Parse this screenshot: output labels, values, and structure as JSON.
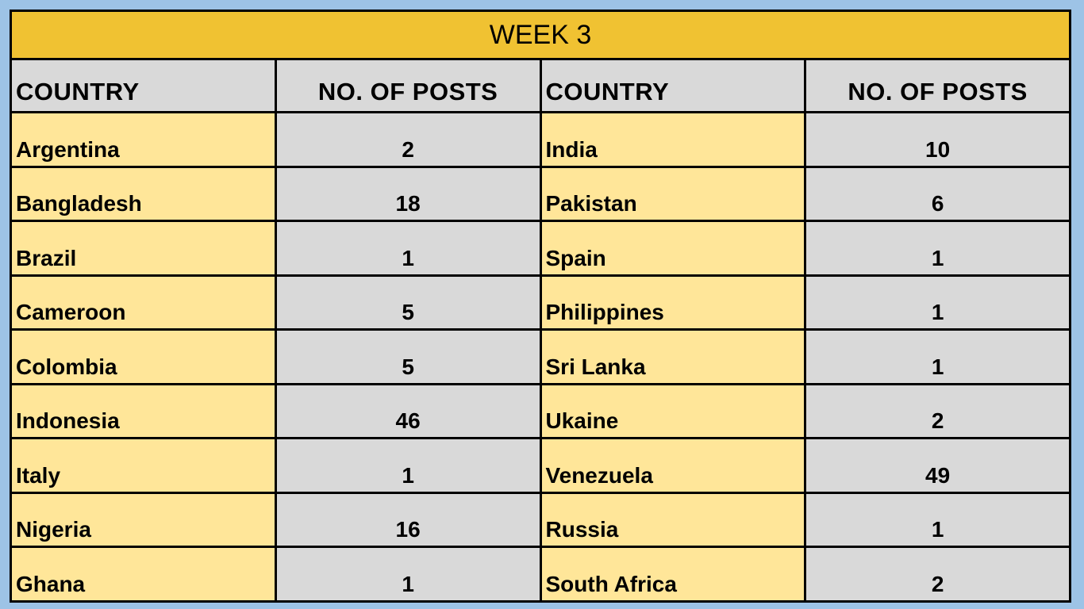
{
  "table": {
    "title": "WEEK 3",
    "headers": [
      "COUNTRY",
      "NO. OF POSTS",
      "COUNTRY",
      "NO. OF POSTS"
    ],
    "rows": [
      [
        "Argentina",
        2,
        "India",
        10
      ],
      [
        "Bangladesh",
        18,
        "Pakistan",
        6
      ],
      [
        "Brazil",
        1,
        "Spain",
        1
      ],
      [
        "Cameroon",
        5,
        "Philippines",
        1
      ],
      [
        "Colombia",
        5,
        "Sri Lanka",
        1
      ],
      [
        "Indonesia",
        46,
        "Ukaine",
        2
      ],
      [
        "Italy",
        1,
        "Venezuela",
        49
      ],
      [
        "Nigeria",
        16,
        "Russia",
        1
      ],
      [
        "Ghana",
        1,
        "South Africa",
        2
      ]
    ]
  }
}
